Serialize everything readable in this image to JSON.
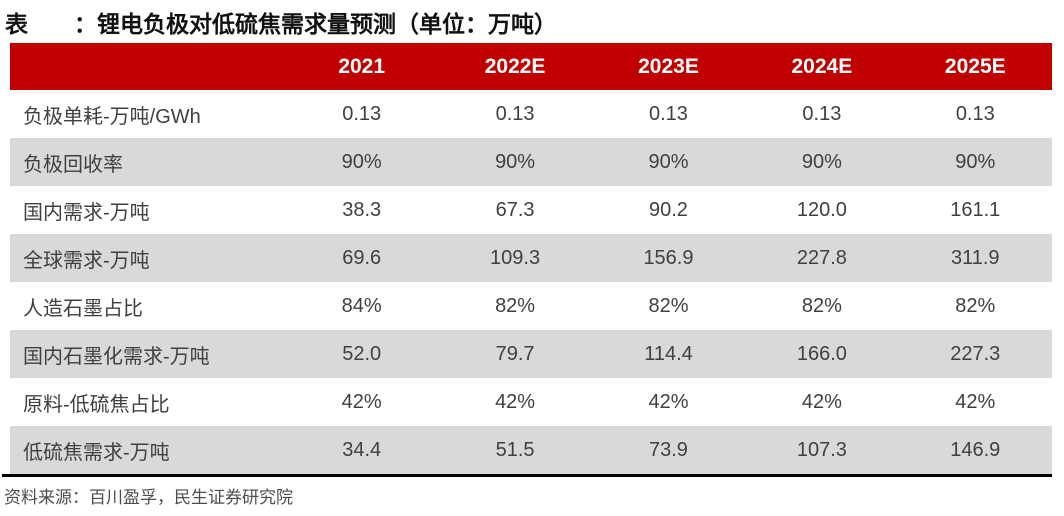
{
  "title": {
    "text": "表　　：锂电负极对低硫焦需求量预测（单位：万吨）"
  },
  "colors": {
    "header_bg": "#C00000",
    "header_text": "#FFFFFF",
    "row_alt_bg": "#D9D9D9",
    "body_text": "#404040",
    "title_text": "#111111",
    "footer_text": "#4D4D4D",
    "rule": "#000000"
  },
  "table": {
    "columns": [
      "",
      "2021",
      "2022E",
      "2023E",
      "2024E",
      "2025E"
    ],
    "rows": [
      {
        "label": "负极单耗-万吨/GWh",
        "values": [
          "0.13",
          "0.13",
          "0.13",
          "0.13",
          "0.13"
        ]
      },
      {
        "label": "负极回收率",
        "values": [
          "90%",
          "90%",
          "90%",
          "90%",
          "90%"
        ]
      },
      {
        "label": "国内需求-万吨",
        "values": [
          "38.3",
          "67.3",
          "90.2",
          "120.0",
          "161.1"
        ]
      },
      {
        "label": "全球需求-万吨",
        "values": [
          "69.6",
          "109.3",
          "156.9",
          "227.8",
          "311.9"
        ]
      },
      {
        "label": "人造石墨占比",
        "values": [
          "84%",
          "82%",
          "82%",
          "82%",
          "82%"
        ]
      },
      {
        "label": "国内石墨化需求-万吨",
        "values": [
          "52.0",
          "79.7",
          "114.4",
          "166.0",
          "227.3"
        ]
      },
      {
        "label": "原料-低硫焦占比",
        "values": [
          "42%",
          "42%",
          "42%",
          "42%",
          "42%"
        ]
      },
      {
        "label": "低硫焦需求-万吨",
        "values": [
          "34.4",
          "51.5",
          "73.9",
          "107.3",
          "146.9"
        ]
      }
    ]
  },
  "footer": {
    "source": "资料来源：百川盈孚，民生证券研究院"
  }
}
